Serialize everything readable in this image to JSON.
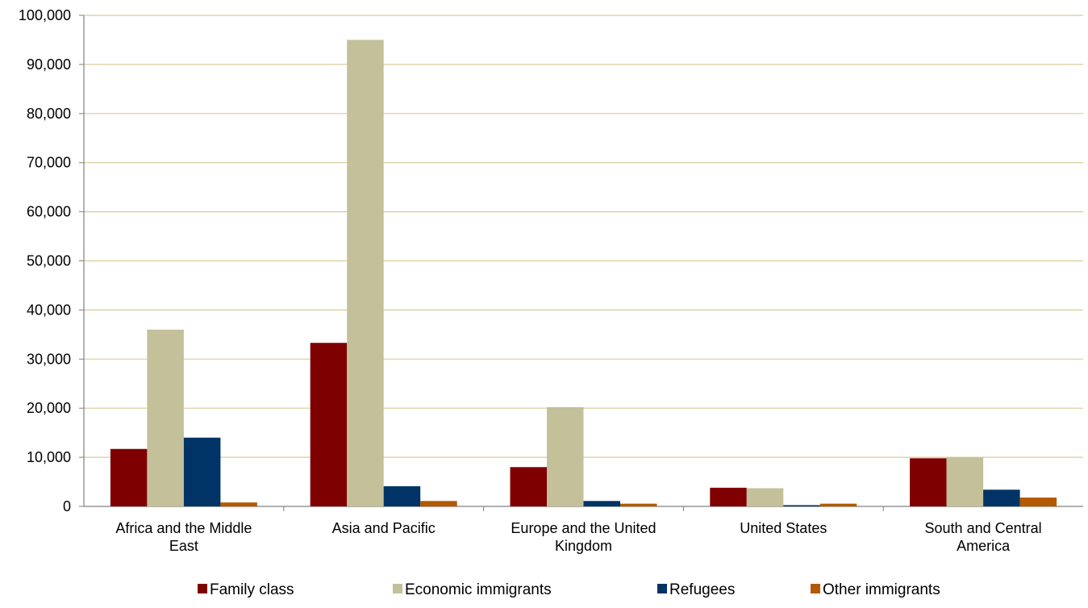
{
  "chart_data": {
    "type": "bar",
    "categories": [
      [
        "Africa and the Middle",
        "East"
      ],
      [
        "Asia and Pacific"
      ],
      [
        "Europe and the United",
        "Kingdom"
      ],
      [
        "United States"
      ],
      [
        "South and Central",
        "America"
      ]
    ],
    "series": [
      {
        "name": "Family class",
        "color": "#7f0000",
        "values": [
          11700,
          33300,
          8000,
          3800,
          9800
        ]
      },
      {
        "name": "Economic immigrants",
        "color": "#c4c09a",
        "values": [
          36000,
          95000,
          20200,
          3700,
          10000
        ]
      },
      {
        "name": "Refugees",
        "color": "#003366",
        "values": [
          14000,
          4100,
          1100,
          250,
          3400
        ]
      },
      {
        "name": "Other immigrants",
        "color": "#b35900",
        "values": [
          800,
          1100,
          550,
          550,
          1800
        ]
      }
    ],
    "ylim": [
      0,
      100000
    ],
    "yticks": [
      "0",
      "10,000",
      "20,000",
      "30,000",
      "40,000",
      "50,000",
      "60,000",
      "70,000",
      "80,000",
      "90,000",
      "100,000"
    ],
    "ytick_step": 10000,
    "grid": true,
    "grid_color": "#d8cc99",
    "legend_position": "bottom",
    "title": "",
    "xlabel": "",
    "ylabel": ""
  }
}
